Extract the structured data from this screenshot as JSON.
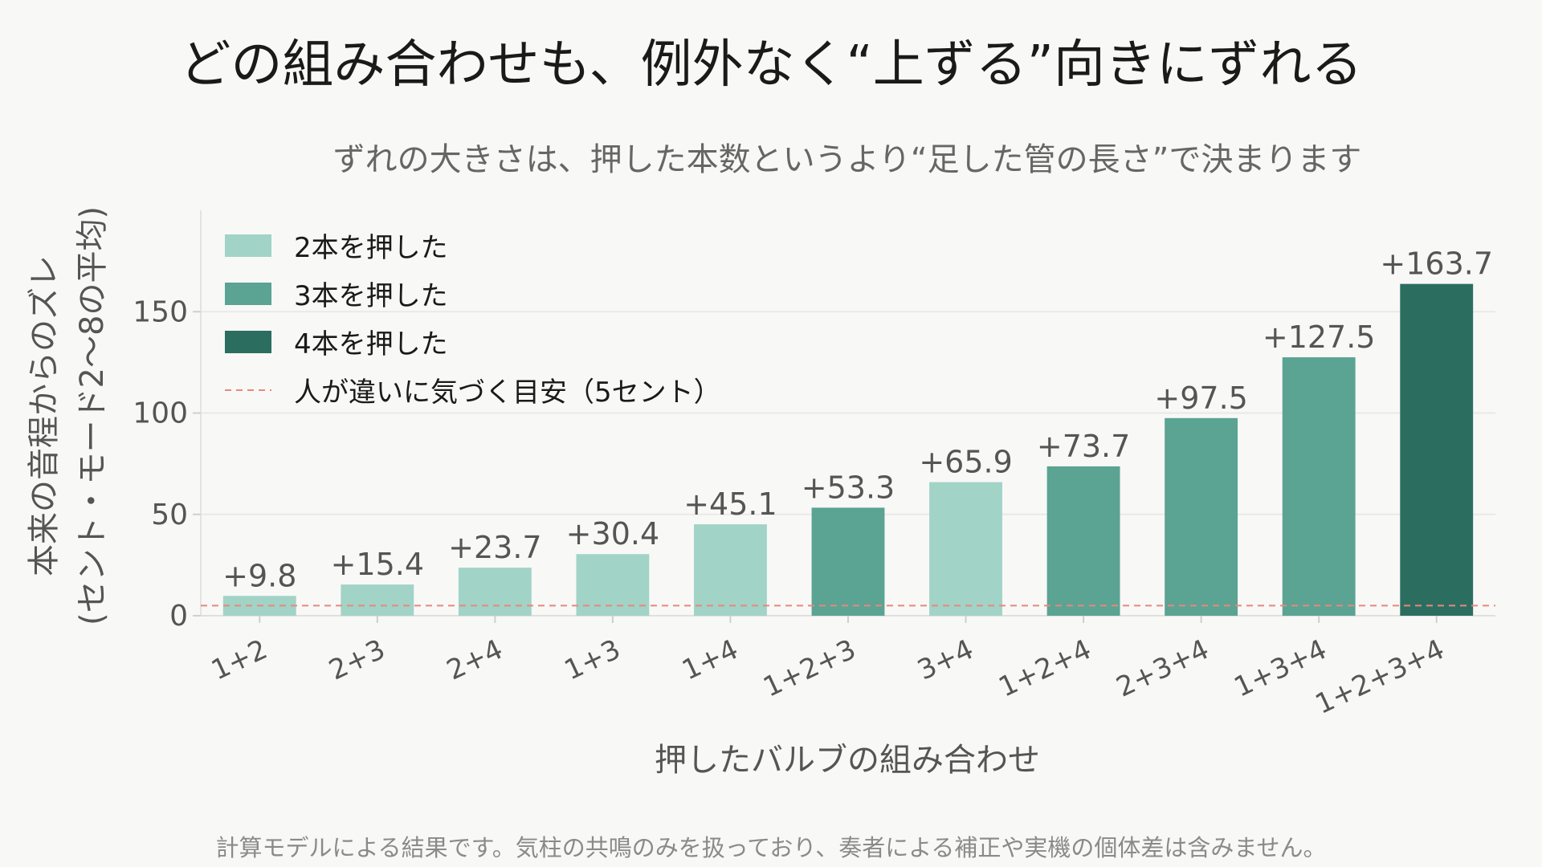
{
  "chart_data": {
    "type": "bar",
    "title": "どの組み合わせも、例外なく“上ずる”向きにずれる",
    "subtitle": "ずれの大きさは、押した本数というより“足した管の長さ”で決まります",
    "xlabel": "押したバルブの組み合わせ",
    "ylabel_line1": "本来の音程からのズレ",
    "ylabel_line2": "(セント・モード2〜8の平均)",
    "ylim": [
      0,
      200
    ],
    "yticks": [
      0,
      50,
      100,
      150
    ],
    "grid": true,
    "categories": [
      "1+2",
      "2+3",
      "2+4",
      "1+3",
      "1+4",
      "1+2+3",
      "3+4",
      "1+2+4",
      "2+3+4",
      "1+3+4",
      "1+2+3+4"
    ],
    "values": [
      9.8,
      15.4,
      23.7,
      30.4,
      45.1,
      53.3,
      65.9,
      73.7,
      97.5,
      127.5,
      163.7
    ],
    "value_labels": [
      "+9.8",
      "+15.4",
      "+23.7",
      "+30.4",
      "+45.1",
      "+53.3",
      "+65.9",
      "+73.7",
      "+97.5",
      "+127.5",
      "+163.7"
    ],
    "valves_pressed": [
      2,
      2,
      2,
      2,
      2,
      3,
      2,
      3,
      3,
      3,
      4
    ],
    "groups": [
      {
        "name": "2本を押した",
        "valves": 2,
        "color": "#a2d3c7"
      },
      {
        "name": "3本を押した",
        "valves": 3,
        "color": "#5ba393"
      },
      {
        "name": "4本を押した",
        "valves": 4,
        "color": "#2b6e60"
      }
    ],
    "reference_line": {
      "name": "人が違いに気づく目安（5セント）",
      "value": 5,
      "color": "#e8897a",
      "style": "dashed"
    },
    "legend_position": "top-left"
  },
  "footnote": "計算モデルによる結果です。気柱の共鳴のみを扱っており、奏者による補正や実機の個体差は含みません。"
}
